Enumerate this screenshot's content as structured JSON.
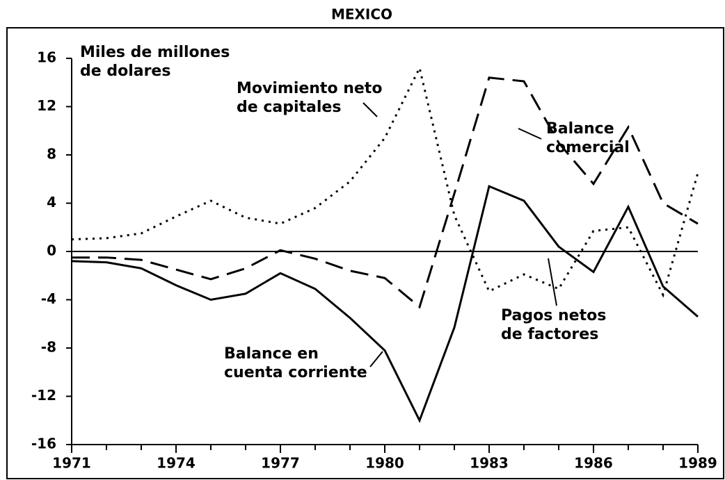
{
  "chart_data": {
    "type": "line",
    "title": "MEXICO",
    "x": [
      1971,
      1972,
      1973,
      1974,
      1975,
      1976,
      1977,
      1978,
      1979,
      1980,
      1981,
      1982,
      1983,
      1984,
      1985,
      1986,
      1987,
      1988,
      1989
    ],
    "series": [
      {
        "name": "Balance en cuenta corriente",
        "style": "solid",
        "color": "#000",
        "values": [
          -0.8,
          -0.9,
          -1.4,
          -2.8,
          -4.0,
          -3.5,
          -1.8,
          -3.1,
          -5.5,
          -8.2,
          -14.0,
          -6.3,
          5.4,
          4.2,
          0.4,
          -1.7,
          3.7,
          -2.9,
          -5.4
        ]
      },
      {
        "name": "Balance comercial",
        "style": "dashed",
        "color": "#000",
        "values": [
          -0.5,
          -0.5,
          -0.7,
          -1.5,
          -2.3,
          -1.4,
          0.1,
          -0.6,
          -1.6,
          -2.2,
          -4.6,
          4.8,
          14.4,
          14.1,
          9.0,
          5.6,
          10.3,
          4.0,
          2.3
        ]
      },
      {
        "name": "Movimiento neto de capitales",
        "style": "dotted",
        "color": "#000",
        "values": [
          1.0,
          1.1,
          1.5,
          2.9,
          4.2,
          2.8,
          2.3,
          3.6,
          5.8,
          9.4,
          15.2,
          3.0,
          -3.3,
          -1.9,
          -3.1,
          1.7,
          2.0,
          -3.6,
          6.5
        ]
      }
    ],
    "annotations": [
      [
        "Miles de millones",
        "de dolares"
      ],
      [
        "Movimiento neto",
        "de capitales"
      ],
      [
        "Balance",
        "comercial"
      ],
      [
        "Pagos netos",
        "de factores"
      ],
      [
        "Balance en",
        "cuenta corriente"
      ]
    ],
    "xlim": [
      1971,
      1989
    ],
    "xticks": [
      1971,
      1974,
      1977,
      1980,
      1983,
      1986,
      1989
    ],
    "ylim": [
      -16,
      16
    ],
    "yticks": [
      -16,
      -12,
      -8,
      -4,
      0,
      4,
      8,
      12,
      16
    ]
  }
}
